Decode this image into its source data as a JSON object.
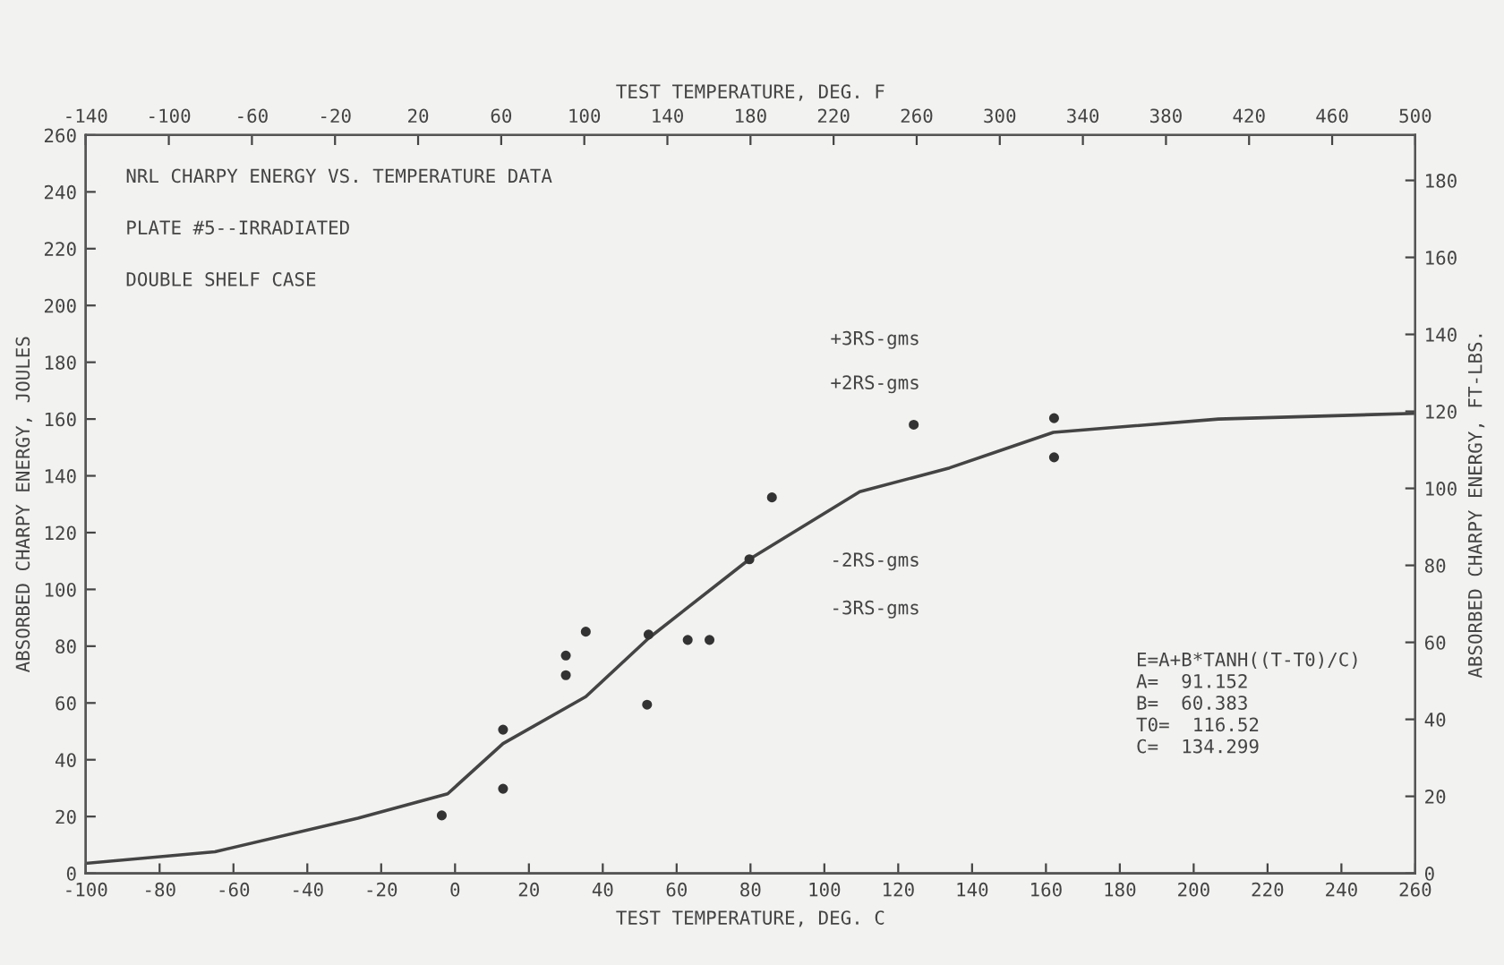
{
  "chart_data": {
    "type": "scatter",
    "title": "NRL CHARPY ENERGY VS. TEMPERATURE DATA",
    "subtitle": "PLATE #5--IRRADIATED",
    "xlabel": "TEST TEMPERATURE, DEG. C",
    "x2label": "TEST TEMPERATURE, DEG. F",
    "ylabel": "ABSORBED CHARPY ENERGY, JOULES",
    "y2label": "ABSORBED CHARPY ENERGY, FT-LBS.",
    "annotations": [
      "DOUBLE SHELF CASE",
      "+3RS-gms",
      "+2RS-gms",
      "-2RS-gms",
      "-3RS-gms",
      "E=A+B*TANH((T-T0)/C)\nA=  91.152\nB=  60.383\nT0=  116.52\nC=  134.299"
    ],
    "xlim": [
      -100,
      260
    ],
    "xticks": [
      -100,
      -80,
      -60,
      -40,
      -20,
      0,
      20,
      40,
      60,
      80,
      100,
      120,
      140,
      160,
      180,
      200,
      220,
      240,
      260
    ],
    "ylim": [
      0,
      260
    ],
    "yticks": [
      0,
      20,
      40,
      60,
      80,
      100,
      120,
      140,
      160,
      180,
      200,
      220,
      240,
      260
    ],
    "y2lim": [
      0,
      191.77
    ],
    "y2ticks": [
      0,
      20,
      40,
      60,
      80,
      100,
      120,
      140,
      160,
      180
    ],
    "x2lim": [
      -140,
      500
    ],
    "x2ticks": [
      -140,
      -100,
      -60,
      -20,
      20,
      60,
      100,
      140,
      180,
      220,
      260,
      300,
      340,
      380,
      420,
      460,
      500
    ],
    "grid": false,
    "legend": false,
    "series": [
      {
        "marker": "circle",
        "color": "#333333",
        "x": [
          -3.6,
          13,
          13,
          30,
          30,
          35.4,
          52.4,
          52,
          63,
          68.9,
          79.7,
          85.8,
          124.2,
          162.2,
          162.2
        ],
        "values": [
          20.4,
          50.6,
          29.8,
          76.7,
          69.8,
          85.1,
          84.1,
          59.4,
          82.2,
          82.2,
          110.6,
          132.4,
          158,
          160.3,
          146.5
        ]
      },
      {
        "type": "line",
        "line_style": "solid",
        "color": "#444444",
        "x": [
          -100,
          -65,
          -26.3,
          -2,
          13,
          35.4,
          52.4,
          79.7,
          109.6,
          133.9,
          162,
          206.7,
          260
        ],
        "values": [
          3.5,
          7.6,
          19.4,
          28,
          45.7,
          62.2,
          82.8,
          110.6,
          134.4,
          142.8,
          155.3,
          160,
          162
        ]
      }
    ]
  }
}
